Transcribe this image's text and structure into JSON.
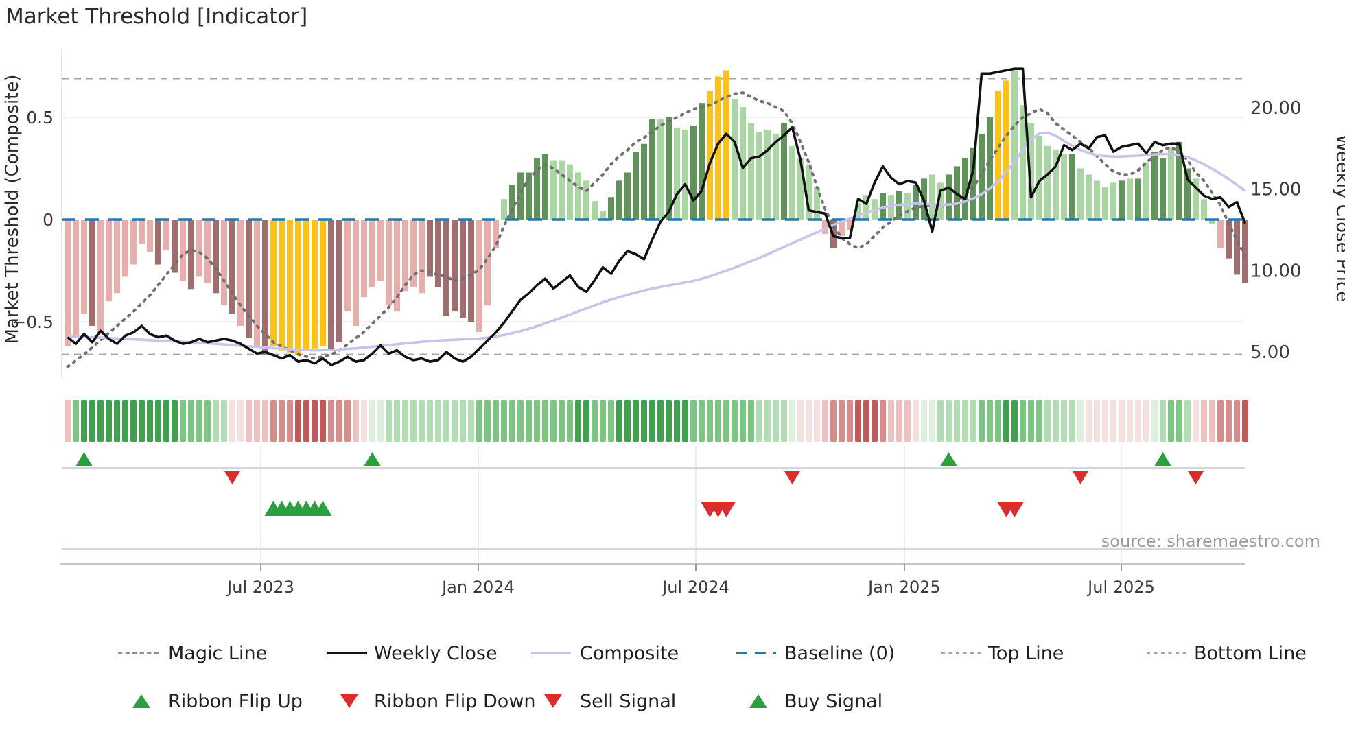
{
  "title": "Market Threshold [Indicator]",
  "chart_data": {
    "type": "bar+line",
    "title": "Market Threshold [Indicator]",
    "source": "source: sharemaestro.com",
    "left_axis": {
      "label": "Market Threshold (Composite)",
      "ticks": [
        {
          "v": 0.5,
          "t": "0.5"
        },
        {
          "v": 0,
          "t": "0"
        },
        {
          "v": -0.5,
          "t": "−0.5"
        }
      ],
      "range": [
        -0.82,
        0.82
      ]
    },
    "right_axis": {
      "label": "Weekly Close Price",
      "ticks": [
        {
          "p": 20,
          "t": "20.00"
        },
        {
          "p": 15,
          "t": "15.00"
        },
        {
          "p": 10,
          "t": "10.00"
        },
        {
          "p": 5,
          "t": "5.00"
        }
      ],
      "range": [
        1.5,
        24.5
      ]
    },
    "x_axis": {
      "tick_labels": [
        "Jul 2023",
        "Jan 2024",
        "Jul 2024",
        "Jan 2025",
        "Jul 2025"
      ],
      "tick_weeks": [
        23.46,
        49.87,
        76.29,
        101.62,
        127.96
      ]
    },
    "reference_lines": {
      "baseline": 0,
      "top_line": 0.69,
      "bottom_line": -0.66
    },
    "bars": {
      "values": [
        -0.62,
        -0.58,
        -0.46,
        -0.52,
        -0.56,
        -0.4,
        -0.36,
        -0.28,
        -0.22,
        -0.12,
        -0.16,
        -0.22,
        -0.15,
        -0.26,
        -0.3,
        -0.34,
        -0.28,
        -0.31,
        -0.36,
        -0.42,
        -0.46,
        -0.52,
        -0.58,
        -0.62,
        -0.66,
        -0.62,
        -0.64,
        -0.65,
        -0.66,
        -0.64,
        -0.63,
        -0.62,
        -0.64,
        -0.6,
        -0.45,
        -0.52,
        -0.38,
        -0.33,
        -0.3,
        -0.42,
        -0.45,
        -0.35,
        -0.33,
        -0.36,
        -0.28,
        -0.33,
        -0.47,
        -0.45,
        -0.48,
        -0.5,
        -0.55,
        -0.42,
        -0.14,
        0.1,
        0.17,
        0.23,
        0.23,
        0.3,
        0.32,
        0.29,
        0.29,
        0.27,
        0.23,
        0.19,
        0.09,
        0.04,
        0.11,
        0.19,
        0.23,
        0.33,
        0.37,
        0.49,
        0.49,
        0.5,
        0.45,
        0.44,
        0.46,
        0.57,
        0.63,
        0.7,
        0.73,
        0.59,
        0.55,
        0.47,
        0.43,
        0.44,
        0.42,
        0.47,
        0.36,
        0.3,
        0.27,
        0.16,
        -0.07,
        -0.14,
        -0.08,
        -0.05,
        0.08,
        0.12,
        0.1,
        0.13,
        0.12,
        0.14,
        0.13,
        0.17,
        0.2,
        0.22,
        0.18,
        0.22,
        0.26,
        0.3,
        0.35,
        0.42,
        0.5,
        0.63,
        0.68,
        0.73,
        0.56,
        0.47,
        0.41,
        0.36,
        0.34,
        0.32,
        0.32,
        0.25,
        0.22,
        0.19,
        0.16,
        0.18,
        0.19,
        0.2,
        0.2,
        0.28,
        0.33,
        0.3,
        0.35,
        0.38,
        0.25,
        0.2,
        0.1,
        -0.02,
        -0.14,
        -0.19,
        -0.27,
        -0.31
      ],
      "colors": "pppmpppppppmpmpmppmpmpmpmyyyyyyymmppppppppppmmmmmmpppldddddllllllldddddd ldllddyyylllllldllllpmppllldldlddllddddddyyllllllldllllldldlddlddlllpmmmm"
    },
    "weekly_close": [
      5.9,
      5.5,
      6.1,
      5.6,
      6.3,
      5.8,
      5.5,
      6.0,
      6.2,
      6.6,
      6.1,
      5.9,
      6.0,
      5.7,
      5.5,
      5.6,
      5.8,
      5.6,
      5.7,
      5.8,
      5.7,
      5.5,
      5.2,
      4.9,
      5.0,
      4.8,
      4.6,
      4.8,
      4.4,
      4.5,
      4.3,
      4.6,
      4.2,
      4.4,
      4.7,
      4.4,
      4.5,
      4.9,
      5.4,
      4.9,
      5.1,
      4.7,
      4.5,
      4.6,
      4.4,
      4.5,
      5.0,
      4.6,
      4.4,
      4.7,
      5.2,
      5.7,
      6.2,
      6.8,
      7.5,
      8.2,
      8.6,
      9.1,
      9.5,
      8.9,
      9.3,
      9.7,
      9.0,
      8.7,
      9.4,
      10.2,
      9.8,
      10.6,
      11.2,
      11.0,
      10.7,
      11.9,
      13.0,
      13.6,
      14.7,
      15.3,
      14.3,
      14.9,
      16.6,
      17.8,
      18.4,
      17.9,
      16.3,
      16.9,
      17.0,
      17.4,
      17.9,
      18.3,
      18.8,
      16.8,
      13.7,
      13.6,
      13.5,
      12.1,
      12.0,
      12.0,
      14.4,
      14.1,
      15.4,
      16.4,
      15.7,
      15.3,
      15.5,
      15.4,
      14.3,
      12.4,
      14.9,
      15.1,
      14.7,
      14.4,
      16.2,
      22.1,
      22.1,
      22.2,
      22.3,
      22.4,
      22.4,
      14.5,
      15.5,
      15.9,
      16.4,
      17.7,
      17.4,
      17.8,
      17.5,
      18.2,
      18.3,
      17.3,
      17.6,
      17.7,
      17.8,
      17.2,
      17.9,
      17.7,
      17.8,
      17.8,
      15.6,
      15.1,
      14.6,
      14.4,
      14.5,
      13.9,
      14.2,
      12.9
    ],
    "composite": [
      -0.57,
      -0.572,
      -0.574,
      -0.576,
      -0.578,
      -0.58,
      -0.582,
      -0.584,
      -0.586,
      -0.588,
      -0.59,
      -0.592,
      -0.594,
      -0.596,
      -0.598,
      -0.6,
      -0.602,
      -0.605,
      -0.608,
      -0.611,
      -0.614,
      -0.617,
      -0.62,
      -0.623,
      -0.626,
      -0.629,
      -0.632,
      -0.634,
      -0.636,
      -0.638,
      -0.64,
      -0.639,
      -0.638,
      -0.636,
      -0.633,
      -0.63,
      -0.626,
      -0.622,
      -0.618,
      -0.614,
      -0.61,
      -0.606,
      -0.602,
      -0.598,
      -0.595,
      -0.592,
      -0.59,
      -0.588,
      -0.586,
      -0.584,
      -0.582,
      -0.578,
      -0.572,
      -0.565,
      -0.556,
      -0.546,
      -0.535,
      -0.522,
      -0.508,
      -0.494,
      -0.48,
      -0.465,
      -0.45,
      -0.435,
      -0.42,
      -0.405,
      -0.392,
      -0.38,
      -0.368,
      -0.357,
      -0.347,
      -0.338,
      -0.33,
      -0.322,
      -0.315,
      -0.308,
      -0.3,
      -0.29,
      -0.278,
      -0.264,
      -0.25,
      -0.235,
      -0.22,
      -0.204,
      -0.188,
      -0.17,
      -0.152,
      -0.134,
      -0.116,
      -0.098,
      -0.08,
      -0.062,
      -0.044,
      -0.026,
      -0.01,
      0.005,
      0.02,
      0.034,
      0.047,
      0.058,
      0.066,
      0.072,
      0.076,
      0.078,
      0.077,
      0.074,
      0.072,
      0.073,
      0.078,
      0.088,
      0.103,
      0.124,
      0.152,
      0.188,
      0.232,
      0.284,
      0.34,
      0.39,
      0.42,
      0.425,
      0.41,
      0.385,
      0.36,
      0.34,
      0.325,
      0.315,
      0.31,
      0.308,
      0.308,
      0.31,
      0.312,
      0.315,
      0.318,
      0.32,
      0.32,
      0.315,
      0.305,
      0.29,
      0.27,
      0.248,
      0.224,
      0.198,
      0.17,
      0.14
    ],
    "magic_line": [
      -0.72,
      -0.69,
      -0.66,
      -0.625,
      -0.59,
      -0.555,
      -0.52,
      -0.485,
      -0.45,
      -0.41,
      -0.37,
      -0.32,
      -0.27,
      -0.22,
      -0.17,
      -0.15,
      -0.16,
      -0.19,
      -0.24,
      -0.3,
      -0.36,
      -0.42,
      -0.47,
      -0.52,
      -0.56,
      -0.6,
      -0.62,
      -0.64,
      -0.66,
      -0.67,
      -0.68,
      -0.67,
      -0.66,
      -0.64,
      -0.61,
      -0.58,
      -0.55,
      -0.51,
      -0.47,
      -0.43,
      -0.38,
      -0.32,
      -0.27,
      -0.25,
      -0.26,
      -0.27,
      -0.28,
      -0.3,
      -0.29,
      -0.27,
      -0.245,
      -0.19,
      -0.13,
      -0.03,
      0.05,
      0.13,
      0.2,
      0.24,
      0.27,
      0.25,
      0.22,
      0.19,
      0.16,
      0.14,
      0.18,
      0.22,
      0.27,
      0.31,
      0.34,
      0.38,
      0.4,
      0.43,
      0.46,
      0.48,
      0.5,
      0.52,
      0.54,
      0.55,
      0.56,
      0.58,
      0.6,
      0.615,
      0.62,
      0.6,
      0.58,
      0.57,
      0.55,
      0.53,
      0.47,
      0.38,
      0.28,
      0.16,
      0.05,
      -0.03,
      -0.09,
      -0.12,
      -0.14,
      -0.12,
      -0.08,
      -0.04,
      -0.01,
      0.02,
      0.04,
      0.06,
      0.065,
      0.07,
      0.07,
      0.07,
      0.09,
      0.12,
      0.16,
      0.22,
      0.29,
      0.35,
      0.41,
      0.46,
      0.5,
      0.52,
      0.54,
      0.52,
      0.47,
      0.44,
      0.41,
      0.38,
      0.35,
      0.31,
      0.27,
      0.235,
      0.22,
      0.22,
      0.24,
      0.28,
      0.31,
      0.34,
      0.355,
      0.33,
      0.29,
      0.23,
      0.19,
      0.13,
      0.07,
      -0.02,
      -0.1,
      -0.18
    ],
    "ribbon": "qijjjjjjjjjjjjiiiihhppqqqrrrssssrrrqpgghhhhhhhhhhhiiiiiiiiiiiijjiiijjjjjjjjjiiiiiiiihhhhgpppqrrrsssrqqqpgghhhhhiiijjiiihhhhgppppppppghiihpqqrrrs",
    "signals": {
      "ribbon_flip_up_weeks": [
        2,
        37,
        107,
        133
      ],
      "ribbon_flip_down_weeks": [
        20,
        88,
        123,
        137
      ],
      "buy_signal_weeks": [
        25,
        26,
        27,
        28,
        29,
        30,
        31
      ],
      "sell_signal_weeks": [
        78,
        79,
        80,
        114,
        115
      ]
    },
    "legend": {
      "row1": [
        {
          "label": "Magic Line",
          "swatch": "magic"
        },
        {
          "label": "Weekly Close",
          "swatch": "weekly"
        },
        {
          "label": "Composite",
          "swatch": "composite"
        },
        {
          "label": "Baseline (0)",
          "swatch": "baseline"
        },
        {
          "label": "Top Line",
          "swatch": "topline"
        },
        {
          "label": "Bottom Line",
          "swatch": "bottomline"
        }
      ],
      "row2": [
        {
          "label": "Ribbon Flip Up",
          "swatch": "tri-up-green"
        },
        {
          "label": "Ribbon Flip Down",
          "swatch": "tri-down-red"
        },
        {
          "label": "Sell Signal",
          "swatch": "tri-down-red"
        },
        {
          "label": "Buy Signal",
          "swatch": "tri-up-green"
        }
      ]
    },
    "palette": {
      "bar_pink": "#e7afab",
      "bar_maroon": "#a06e6e",
      "bar_light_green": "#a9d6a3",
      "bar_dark_green": "#5f9359",
      "bar_yellow": "#fbc21e",
      "weekly_close_line": "#111111",
      "composite_line": "#c9c3ea",
      "magic_line": "#717171",
      "baseline": "#2179b0",
      "top_bottom_line": "#a3a3a3",
      "grid": "#e9e9f2",
      "signal_green": "#2b9e3f",
      "signal_red": "#da2d2d",
      "ribbon_g0": "#ddf0de",
      "ribbon_g1": "#b2ddb4",
      "ribbon_g2": "#7ec584",
      "ribbon_g3": "#41a04e",
      "ribbon_r0": "#f6dfdf",
      "ribbon_r1": "#eec1c0",
      "ribbon_r2": "#d68d8c",
      "ribbon_r3": "#bd5a5a"
    }
  }
}
